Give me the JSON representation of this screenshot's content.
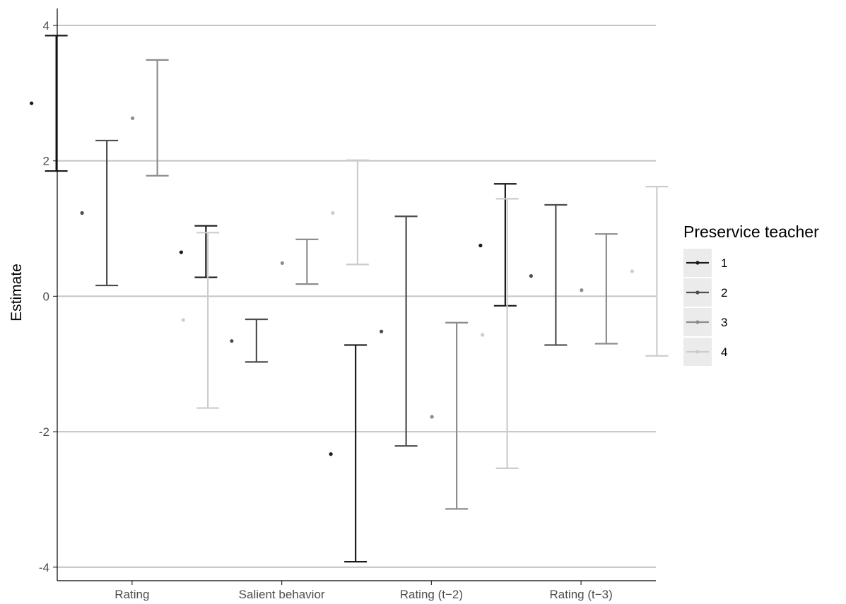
{
  "chart_data": {
    "type": "errorbar",
    "xlabel": "",
    "ylabel": "Estimate",
    "ylim": [
      -4.2,
      4.25
    ],
    "yticks": [
      -4,
      -2,
      0,
      2,
      4
    ],
    "grid": "horizontal major lines",
    "legend_position": "right",
    "legend_title": "Preservice teacher",
    "categories": [
      "Rating",
      "Salient behavior",
      "Rating (t−2)",
      "Rating (t−3)"
    ],
    "series": [
      {
        "name": "1",
        "color": "#1a1a1a",
        "estimate": [
          2.85,
          0.65,
          -2.33,
          0.75
        ],
        "lower": [
          1.85,
          0.28,
          -3.92,
          -0.14
        ],
        "upper": [
          3.85,
          1.04,
          -0.72,
          1.66
        ]
      },
      {
        "name": "2",
        "color": "#4d4d4d",
        "estimate": [
          1.23,
          -0.66,
          -0.52,
          0.3
        ],
        "lower": [
          0.16,
          -0.97,
          -2.21,
          -0.72
        ],
        "upper": [
          2.3,
          -0.34,
          1.18,
          1.35
        ]
      },
      {
        "name": "3",
        "color": "#8c8c8c",
        "estimate": [
          2.63,
          0.49,
          -1.78,
          0.09
        ],
        "lower": [
          1.78,
          0.18,
          -3.14,
          -0.7
        ],
        "upper": [
          3.49,
          0.84,
          -0.39,
          0.92
        ]
      },
      {
        "name": "4",
        "color": "#cccccc",
        "estimate": [
          -0.35,
          1.23,
          -0.57,
          0.37
        ],
        "lower": [
          -1.65,
          0.47,
          -2.54,
          -0.88
        ],
        "upper": [
          0.94,
          2.01,
          1.44,
          1.62
        ]
      }
    ]
  }
}
